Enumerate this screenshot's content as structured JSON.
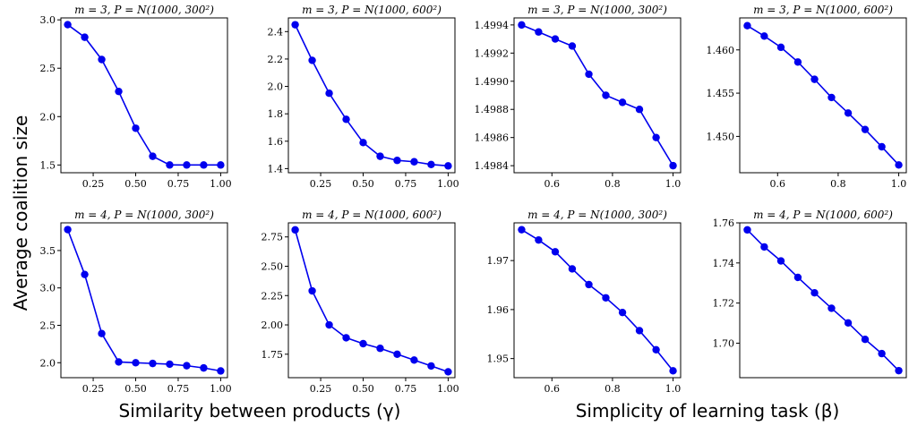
{
  "figure": {
    "ylabel": "Average coalition size",
    "xlabel_left": "Similarity between products (γ)",
    "xlabel_right": "Simplicity of learning task (β)",
    "line_color": "#0000ee"
  },
  "chart_data": [
    {
      "type": "line",
      "title": "m = 3, P = N(1000, 300²)",
      "x": [
        0.1,
        0.2,
        0.3,
        0.4,
        0.5,
        0.6,
        0.7,
        0.8,
        0.9,
        1.0
      ],
      "y": [
        2.95,
        2.82,
        2.59,
        2.26,
        1.88,
        1.59,
        1.5,
        1.5,
        1.5,
        1.5
      ],
      "xlim": [
        0.06,
        1.04
      ],
      "ylim": [
        1.42,
        3.02
      ],
      "xticks": [
        0.25,
        0.5,
        0.75,
        1.0
      ],
      "xticklabels": [
        "0.25",
        "0.50",
        "0.75",
        "1.00"
      ],
      "yticks": [
        1.5,
        2.0,
        2.5,
        3.0
      ],
      "yticklabels": [
        "1.5",
        "2.0",
        "2.5",
        "3.0"
      ]
    },
    {
      "type": "line",
      "title": "m = 3, P = N(1000, 600²)",
      "x": [
        0.1,
        0.2,
        0.3,
        0.4,
        0.5,
        0.6,
        0.7,
        0.8,
        0.9,
        1.0
      ],
      "y": [
        2.45,
        2.19,
        1.95,
        1.76,
        1.59,
        1.49,
        1.46,
        1.45,
        1.43,
        1.42
      ],
      "xlim": [
        0.06,
        1.04
      ],
      "ylim": [
        1.37,
        2.5
      ],
      "xticks": [
        0.25,
        0.5,
        0.75,
        1.0
      ],
      "xticklabels": [
        "0.25",
        "0.50",
        "0.75",
        "1.00"
      ],
      "yticks": [
        1.4,
        1.6,
        1.8,
        2.0,
        2.2,
        2.4
      ],
      "yticklabels": [
        "1.4",
        "1.6",
        "1.8",
        "2.0",
        "2.2",
        "2.4"
      ]
    },
    {
      "type": "line",
      "title": "m = 3, P = N(1000, 300²)",
      "x": [
        0.5,
        0.556,
        0.611,
        0.667,
        0.722,
        0.778,
        0.833,
        0.889,
        0.944,
        1.0
      ],
      "y": [
        1.4994,
        1.49935,
        1.4993,
        1.49925,
        1.49905,
        1.4989,
        1.49885,
        1.4988,
        1.4986,
        1.4984
      ],
      "xlim": [
        0.475,
        1.025
      ],
      "ylim": [
        1.49835,
        1.49945
      ],
      "xticks": [
        0.6,
        0.8,
        1.0
      ],
      "xticklabels": [
        "0.6",
        "0.8",
        "1.0"
      ],
      "yticks": [
        1.4984,
        1.4986,
        1.4988,
        1.499,
        1.4992,
        1.4994
      ],
      "yticklabels": [
        "1.4984",
        "1.4986",
        "1.4988",
        "1.4990",
        "1.4992",
        "1.4994"
      ]
    },
    {
      "type": "line",
      "title": "m = 3, P = N(1000, 600²)",
      "x": [
        0.5,
        0.556,
        0.611,
        0.667,
        0.722,
        0.778,
        0.833,
        0.889,
        0.944,
        1.0
      ],
      "y": [
        1.4628,
        1.4616,
        1.4603,
        1.4586,
        1.4566,
        1.4545,
        1.4527,
        1.4508,
        1.4488,
        1.4467
      ],
      "xlim": [
        0.475,
        1.025
      ],
      "ylim": [
        1.4458,
        1.4637
      ],
      "xticks": [
        0.6,
        0.8,
        1.0
      ],
      "xticklabels": [
        "0.6",
        "0.8",
        "1.0"
      ],
      "yticks": [
        1.45,
        1.455,
        1.46
      ],
      "yticklabels": [
        "1.450",
        "1.455",
        "1.460"
      ]
    },
    {
      "type": "line",
      "title": "m = 4, P = N(1000, 300²)",
      "x": [
        0.1,
        0.2,
        0.3,
        0.4,
        0.5,
        0.6,
        0.7,
        0.8,
        0.9,
        1.0
      ],
      "y": [
        3.78,
        3.18,
        2.39,
        2.01,
        2.0,
        1.99,
        1.98,
        1.96,
        1.93,
        1.89
      ],
      "xlim": [
        0.06,
        1.04
      ],
      "ylim": [
        1.8,
        3.87
      ],
      "xticks": [
        0.25,
        0.5,
        0.75,
        1.0
      ],
      "xticklabels": [
        "0.25",
        "0.50",
        "0.75",
        "1.00"
      ],
      "yticks": [
        2.0,
        2.5,
        3.0,
        3.5
      ],
      "yticklabels": [
        "2.0",
        "2.5",
        "3.0",
        "3.5"
      ]
    },
    {
      "type": "line",
      "title": "m = 4, P = N(1000, 600²)",
      "x": [
        0.1,
        0.2,
        0.3,
        0.4,
        0.5,
        0.6,
        0.7,
        0.8,
        0.9,
        1.0
      ],
      "y": [
        2.81,
        2.29,
        2.0,
        1.89,
        1.84,
        1.8,
        1.75,
        1.7,
        1.65,
        1.6
      ],
      "xlim": [
        0.06,
        1.04
      ],
      "ylim": [
        1.55,
        2.87
      ],
      "xticks": [
        0.25,
        0.5,
        0.75,
        1.0
      ],
      "xticklabels": [
        "0.25",
        "0.50",
        "0.75",
        "1.00"
      ],
      "yticks": [
        1.75,
        2.0,
        2.25,
        2.5,
        2.75
      ],
      "yticklabels": [
        "1.75",
        "2.00",
        "2.25",
        "2.50",
        "2.75"
      ]
    },
    {
      "type": "line",
      "title": "m = 4, P = N(1000, 300²)",
      "x": [
        0.5,
        0.556,
        0.611,
        0.667,
        0.722,
        0.778,
        0.833,
        0.889,
        0.944,
        1.0
      ],
      "y": [
        1.9763,
        1.9742,
        1.9718,
        1.9683,
        1.9651,
        1.9624,
        1.9594,
        1.9557,
        1.9518,
        1.9475
      ],
      "xlim": [
        0.475,
        1.025
      ],
      "ylim": [
        1.9461,
        1.9777
      ],
      "xticks": [
        0.6,
        0.8,
        1.0
      ],
      "xticklabels": [
        "0.6",
        "0.8",
        "1.0"
      ],
      "yticks": [
        1.95,
        1.96,
        1.97
      ],
      "yticklabels": [
        "1.95",
        "1.96",
        "1.97"
      ]
    },
    {
      "type": "line",
      "title": "m = 4, P = N(1000, 600²)",
      "x": [
        0.5,
        0.556,
        0.611,
        0.667,
        0.722,
        0.778,
        0.833,
        0.889,
        0.944,
        1.0
      ],
      "y": [
        1.7565,
        1.748,
        1.741,
        1.7328,
        1.7251,
        1.7174,
        1.7101,
        1.7019,
        1.6948,
        1.6863
      ],
      "xlim": [
        0.475,
        1.025
      ],
      "ylim": [
        1.6828,
        1.76
      ],
      "xticks": [
        0.7,
        0.72,
        0.74,
        0.76
      ],
      "xticklabels": [],
      "yticks": [
        1.7,
        1.72,
        1.74,
        1.76
      ],
      "yticklabels": [
        "1.70",
        "1.72",
        "1.74",
        "1.76"
      ]
    }
  ]
}
